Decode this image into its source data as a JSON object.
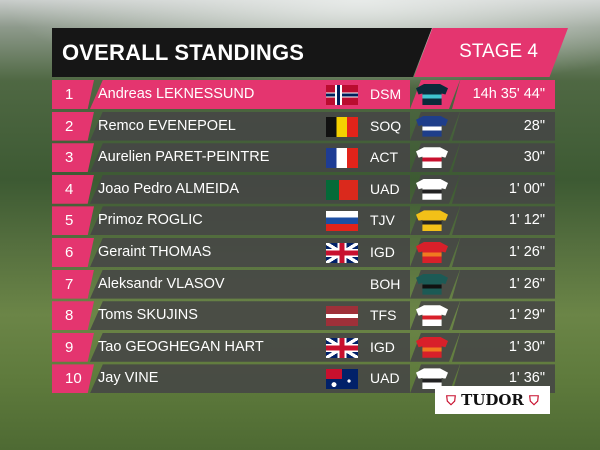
{
  "header": {
    "title": "OVERALL STANDINGS",
    "stage": "STAGE 4"
  },
  "accent": "#e4356f",
  "rows": [
    {
      "rank": "1",
      "name": "Andreas LEKNESSUND",
      "flag": "norway",
      "team": "DSM",
      "jersey": [
        "#0b2a3a",
        "#3fc4d0"
      ],
      "time": "14h 35' 44\""
    },
    {
      "rank": "2",
      "name": "Remco EVENEPOEL",
      "flag": "belgium",
      "team": "SOQ",
      "jersey": [
        "#1f3e8a",
        "#ffffff"
      ],
      "time": "28\""
    },
    {
      "rank": "3",
      "name": "Aurelien PARET-PEINTRE",
      "flag": "france",
      "team": "ACT",
      "jersey": [
        "#ffffff",
        "#c8102e"
      ],
      "time": "30\""
    },
    {
      "rank": "4",
      "name": "Joao Pedro ALMEIDA",
      "flag": "portugal",
      "team": "UAD",
      "jersey": [
        "#ffffff",
        "#222222"
      ],
      "time": "1' 00\""
    },
    {
      "rank": "5",
      "name": "Primoz ROGLIC",
      "flag": "slovenia",
      "team": "TJV",
      "jersey": [
        "#f2c018",
        "#222222"
      ],
      "time": "1' 12\""
    },
    {
      "rank": "6",
      "name": "Geraint THOMAS",
      "flag": "uk",
      "team": "IGD",
      "jersey": [
        "#d8202a",
        "#f07a20"
      ],
      "time": "1' 26\""
    },
    {
      "rank": "7",
      "name": "Aleksandr VLASOV",
      "flag": "",
      "team": "BOH",
      "jersey": [
        "#1c5a55",
        "#111111"
      ],
      "time": "1' 26\""
    },
    {
      "rank": "8",
      "name": "Toms SKUJINS",
      "flag": "latvia",
      "team": "TFS",
      "jersey": [
        "#ffffff",
        "#d8202a"
      ],
      "time": "1' 29\""
    },
    {
      "rank": "9",
      "name": "Tao GEOGHEGAN HART",
      "flag": "uk",
      "team": "IGD",
      "jersey": [
        "#d8202a",
        "#f07a20"
      ],
      "time": "1' 30\""
    },
    {
      "rank": "10",
      "name": "Jay VINE",
      "flag": "australia",
      "team": "UAD",
      "jersey": [
        "#ffffff",
        "#222222"
      ],
      "time": "1' 36\""
    }
  ],
  "sponsor": {
    "logo_text": "TUDOR"
  }
}
